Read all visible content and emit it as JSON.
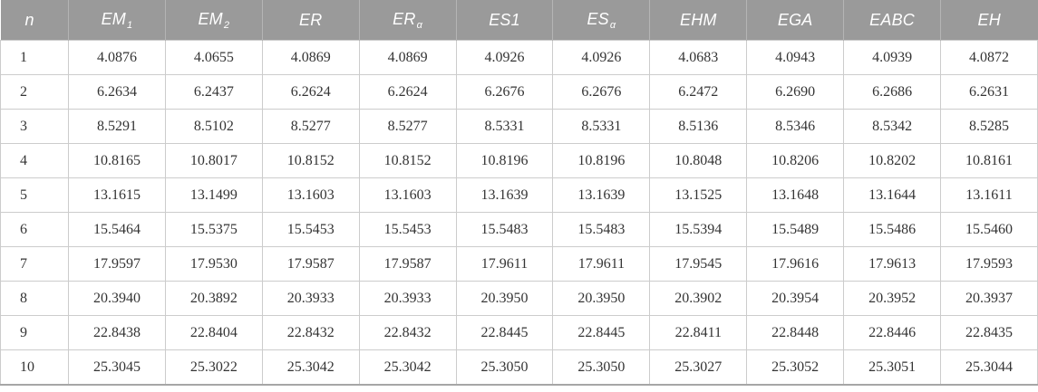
{
  "colors": {
    "header_bg": "#9a9a9a",
    "header_text": "#ffffff",
    "header_divider": "#b4b4b4",
    "cell_border": "#cccccc",
    "body_text": "#343434",
    "table_bottom_border": "#a6a6a6"
  },
  "table": {
    "columns": [
      {
        "label": "n",
        "sub": ""
      },
      {
        "label": "EM",
        "sub": "1"
      },
      {
        "label": "EM",
        "sub": "2"
      },
      {
        "label": "ER",
        "sub": ""
      },
      {
        "label": "ER",
        "sub": "α"
      },
      {
        "label": "ES1",
        "sub": ""
      },
      {
        "label": "ES",
        "sub": "α"
      },
      {
        "label": "EHM",
        "sub": ""
      },
      {
        "label": "EGA",
        "sub": ""
      },
      {
        "label": "EABC",
        "sub": ""
      },
      {
        "label": "EH",
        "sub": ""
      }
    ],
    "rows": [
      [
        "1",
        "4.0876",
        "4.0655",
        "4.0869",
        "4.0869",
        "4.0926",
        "4.0926",
        "4.0683",
        "4.0943",
        "4.0939",
        "4.0872"
      ],
      [
        "2",
        "6.2634",
        "6.2437",
        "6.2624",
        "6.2624",
        "6.2676",
        "6.2676",
        "6.2472",
        "6.2690",
        "6.2686",
        "6.2631"
      ],
      [
        "3",
        "8.5291",
        "8.5102",
        "8.5277",
        "8.5277",
        "8.5331",
        "8.5331",
        "8.5136",
        "8.5346",
        "8.5342",
        "8.5285"
      ],
      [
        "4",
        "10.8165",
        "10.8017",
        "10.8152",
        "10.8152",
        "10.8196",
        "10.8196",
        "10.8048",
        "10.8206",
        "10.8202",
        "10.8161"
      ],
      [
        "5",
        "13.1615",
        "13.1499",
        "13.1603",
        "13.1603",
        "13.1639",
        "13.1639",
        "13.1525",
        "13.1648",
        "13.1644",
        "13.1611"
      ],
      [
        "6",
        "15.5464",
        "15.5375",
        "15.5453",
        "15.5453",
        "15.5483",
        "15.5483",
        "15.5394",
        "15.5489",
        "15.5486",
        "15.5460"
      ],
      [
        "7",
        "17.9597",
        "17.9530",
        "17.9587",
        "17.9587",
        "17.9611",
        "17.9611",
        "17.9545",
        "17.9616",
        "17.9613",
        "17.9593"
      ],
      [
        "8",
        "20.3940",
        "20.3892",
        "20.3933",
        "20.3933",
        "20.3950",
        "20.3950",
        "20.3902",
        "20.3954",
        "20.3952",
        "20.3937"
      ],
      [
        "9",
        "22.8438",
        "22.8404",
        "22.8432",
        "22.8432",
        "22.8445",
        "22.8445",
        "22.8411",
        "22.8448",
        "22.8446",
        "22.8435"
      ],
      [
        "10",
        "25.3045",
        "25.3022",
        "25.3042",
        "25.3042",
        "25.3050",
        "25.3050",
        "25.3027",
        "25.3052",
        "25.3051",
        "25.3044"
      ]
    ]
  }
}
